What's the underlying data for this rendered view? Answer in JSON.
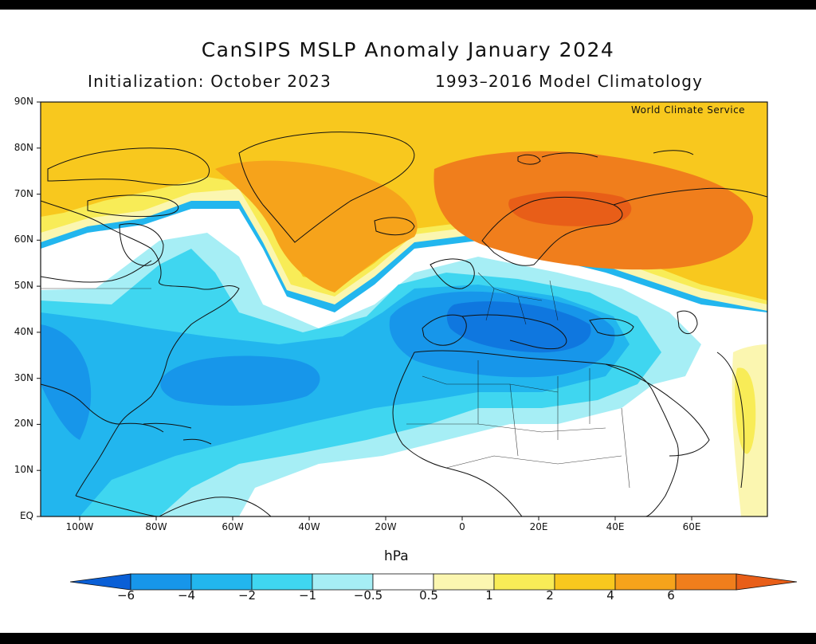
{
  "title": "CanSIPS MSLP Anomaly January 2024",
  "subtitle_left": "Initialization: October 2023",
  "subtitle_right": "1993–2016 Model Climatology",
  "credit": "World Climate Service",
  "lat_labels": [
    "90N",
    "80N",
    "70N",
    "60N",
    "50N",
    "40N",
    "30N",
    "20N",
    "10N",
    "EQ"
  ],
  "lon_labels": [
    "100W",
    "80W",
    "60W",
    "40W",
    "20W",
    "0",
    "20E",
    "40E",
    "60E"
  ],
  "colorbar": {
    "unit": "hPa",
    "tick_labels": [
      "−6",
      "−4",
      "−2",
      "−1",
      "−0.5",
      "0.5",
      "1",
      "2",
      "4",
      "6"
    ],
    "colors": [
      "#0a5fd6",
      "#1796ea",
      "#22b6ee",
      "#3fd6f0",
      "#a6eef5",
      "#ffffff",
      "#fbf6b0",
      "#f8ec57",
      "#f8c81e",
      "#f6a31b",
      "#f07e1c",
      "#e85e18"
    ]
  },
  "colors": {
    "land_outline": "#111111",
    "background": "#ffffff"
  }
}
